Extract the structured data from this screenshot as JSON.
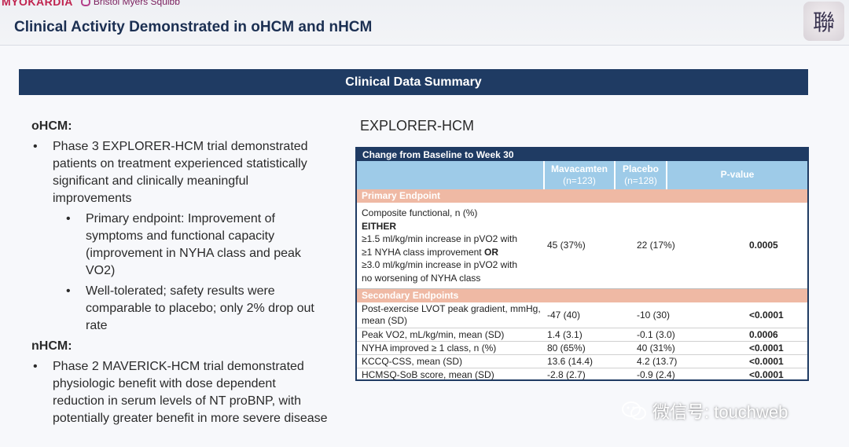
{
  "header": {
    "logo_primary": "MYOKARDIA",
    "logo_secondary": "Bristol Myers Squibb",
    "title": "Clinical Activity Demonstrated in oHCM and nHCM",
    "seal_char": "聯"
  },
  "banner": {
    "title": "Clinical Data Summary"
  },
  "left": {
    "ohcm": {
      "heading": "oHCM:",
      "bullet1": "Phase 3 EXPLORER-HCM trial demonstrated patients on treatment experienced statistically significant and clinically meaningful improvements",
      "sub1": "Primary endpoint: Improvement of symptoms and functional capacity (improvement in NYHA class and peak VO2)",
      "sub2": "Well-tolerated; safety results were comparable to placebo; only 2% drop out rate"
    },
    "nhcm": {
      "heading": "nHCM:",
      "bullet1": "Phase 2 MAVERICK-HCM trial demonstrated physiologic benefit with dose dependent reduction in serum levels of NT proBNP, with potentially greater benefit in more severe disease"
    }
  },
  "table": {
    "study_title": "EXPLORER-HCM",
    "header": "Change from Baseline to Week 30",
    "columns": {
      "mava": "Mavacamten",
      "mava_n": "(n=123)",
      "placebo": "Placebo",
      "placebo_n": "(n=128)",
      "pvalue": "P-value"
    },
    "primary_label": "Primary Endpoint",
    "primary": {
      "line1": "Composite functional, n (%)",
      "line2": "EITHER",
      "line3": "≥1.5 ml/kg/min increase in pVO2 with",
      "line4a": "≥1 NYHA class improvement ",
      "line4b": "OR",
      "line5": "≥3.0 ml/kg/min increase in pVO2 with",
      "line6": "no worsening of NYHA class",
      "mava": "45 (37%)",
      "placebo": "22 (17%)",
      "p": "0.0005"
    },
    "secondary_label": "Secondary Endpoints",
    "secondary": [
      {
        "label": "Post-exercise LVOT peak gradient, mmHg, mean (SD)",
        "mava": "-47 (40)",
        "placebo": "-10 (30)",
        "p": "<0.0001"
      },
      {
        "label": "Peak VO2, mL/kg/min, mean (SD)",
        "mava": "1.4 (3.1)",
        "placebo": "-0.1 (3.0)",
        "p": "0.0006"
      },
      {
        "label": "NYHA improved ≥ 1 class, n (%)",
        "mava": "80 (65%)",
        "placebo": "40 (31%)",
        "p": "<0.0001"
      },
      {
        "label": "KCCQ-CSS, mean (SD)",
        "mava": "13.6 (14.4)",
        "placebo": "4.2 (13.7)",
        "p": "<0.0001"
      },
      {
        "label": "HCMSQ-SoB score, mean (SD)",
        "mava": "-2.8 (2.7)",
        "placebo": "-0.9 (2.4)",
        "p": "<0.0001"
      }
    ]
  },
  "watermark": {
    "text": "微信号: touchweb"
  },
  "colors": {
    "navy": "#1f3b63",
    "sky": "#9ecbe8",
    "salmon": "#efb9a4"
  }
}
